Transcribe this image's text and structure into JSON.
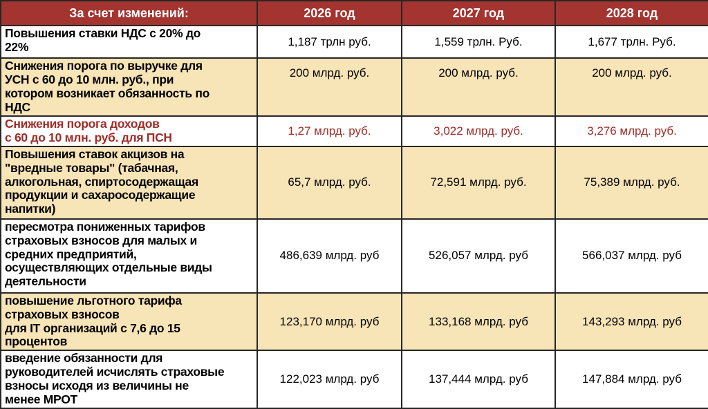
{
  "colors": {
    "header_bg": "#A3342F",
    "cream_bg": "#F7E4B7",
    "red_text": "#A02C28",
    "border": "#262626"
  },
  "table": {
    "header": {
      "label_col": "За счет изменений:",
      "year_cols": [
        "2026 год",
        "2027 год",
        "2028 год"
      ]
    },
    "rows": [
      {
        "label": "Повышения ставки НДС с 20% до\n22%",
        "values": [
          "1,187 трлн руб.",
          "1,559 трлн. Руб.",
          "1,677 трлн. Руб."
        ],
        "bg": "white",
        "text": "black",
        "value_valign": "middle"
      },
      {
        "label": "Снижения порога по выручке для\nУСН с 60 до 10 млн. руб., при\nкотором возникает обязанность по\nНДС",
        "values": [
          "200 млрд. руб.",
          "200 млрд. руб.",
          "200 млрд. руб."
        ],
        "bg": "cream",
        "text": "black",
        "value_valign": "top"
      },
      {
        "label": "Снижения порога доходов\nс 60 до 10 млн. руб. для ПСН",
        "values": [
          "1,27 млрд. руб.",
          "3,022 млрд. руб.",
          "3,276 млрд. руб."
        ],
        "bg": "white",
        "text": "red",
        "value_valign": "middle"
      },
      {
        "label": "Повышения ставок акцизов на\n\"вредные товары\" (табачная,\nалкогольная, спиртосодержащая\nпродукции и сахаросодержащие\nнапитки)",
        "values": [
          "65,7 млрд. руб.",
          "72,591 млрд. руб.",
          "75,389 млрд. руб."
        ],
        "bg": "cream",
        "text": "black",
        "value_valign": "middle"
      },
      {
        "label": "пересмотра пониженных тарифов\nстраховых взносов для малых и\nсредних предприятий,\nосуществляющих отдельные виды\nдеятельности",
        "values": [
          "486,639 млрд. руб",
          "526,057 млрд. руб",
          "566,037 млрд. руб"
        ],
        "bg": "white",
        "text": "black",
        "value_valign": "middle"
      },
      {
        "label": "повышение льготного тарифа\nстраховых взносов\nдля IT организаций с 7,6 до 15\nпроцентов",
        "values": [
          "123,170 млрд. руб",
          "133,168 млрд. руб",
          "143,293 млрд. руб"
        ],
        "bg": "cream",
        "text": "black",
        "value_valign": "middle"
      },
      {
        "label": "введение обязанности для\nруководителей исчислять страховые\nвзносы исходя из величины не\nменее МРОТ",
        "values": [
          "122,023 млрд. руб",
          "137,444 млрд. руб",
          "147,884 млрд. руб"
        ],
        "bg": "white",
        "text": "black",
        "value_valign": "middle"
      }
    ]
  }
}
